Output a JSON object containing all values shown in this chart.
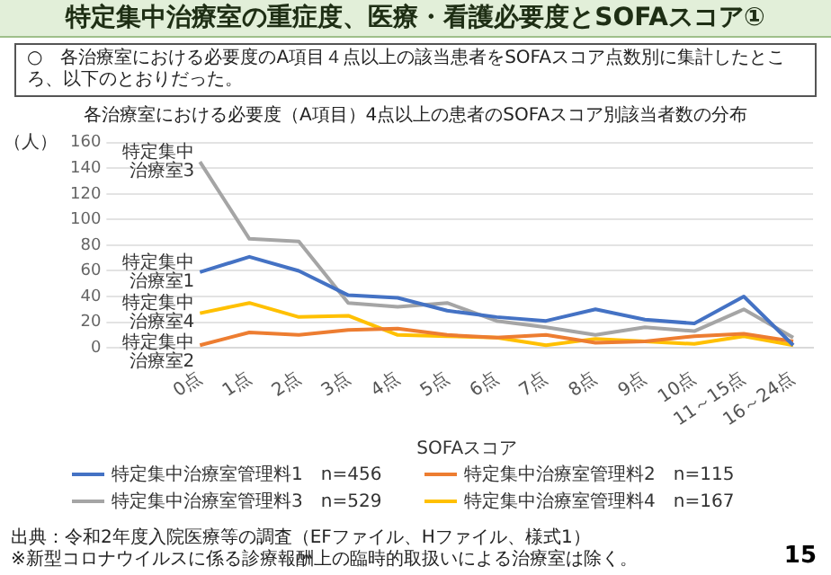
{
  "chart_data": {
    "type": "line",
    "title": "特定集中治療室の重症度、医療・看護必要度とSOFAスコア①",
    "subtitle": "各治療室における必要度（A項目）4点以上の患者のSOFAスコア別該当者数の分布",
    "xlabel": "SOFAスコア",
    "ylabel": "（人）",
    "categories": [
      "0点",
      "1点",
      "2点",
      "3点",
      "4点",
      "5点",
      "6点",
      "7点",
      "8点",
      "9点",
      "10点",
      "11～15点",
      "16～24点"
    ],
    "series": [
      {
        "name": "特定集中治療室管理料1",
        "color": "#4472c4",
        "values": [
          59,
          71,
          60,
          41,
          39,
          29,
          24,
          21,
          30,
          22,
          19,
          40,
          2
        ]
      },
      {
        "name": "特定集中治療室管理料2",
        "color": "#ed7d31",
        "values": [
          2,
          12,
          10,
          14,
          15,
          10,
          8,
          10,
          4,
          5,
          9,
          11,
          5
        ]
      },
      {
        "name": "特定集中治療室管理料3",
        "color": "#a5a5a5",
        "values": [
          145,
          85,
          83,
          35,
          32,
          35,
          21,
          16,
          10,
          16,
          13,
          30,
          8
        ]
      },
      {
        "name": "特定集中治療室管理料4",
        "color": "#ffc000",
        "values": [
          27,
          35,
          24,
          25,
          10,
          9,
          8,
          2,
          7,
          5,
          3,
          9,
          2
        ]
      }
    ],
    "ylim": [
      0,
      160
    ],
    "yticks": [
      0,
      20,
      40,
      60,
      80,
      100,
      120,
      140,
      160
    ],
    "grid": "y",
    "legend": "bottom",
    "marker": "none",
    "line_style": "solid",
    "annotations": [
      "○　各治療室における必要度のA項目４点以上の該当患者をSOFAスコア点数別に集計したところ、以下のとおりだった。",
      {
        "text": "特定集中治療室1",
        "x": "0点",
        "y": 59
      },
      {
        "text": "特定集中治療室2",
        "x": "0点",
        "y": 2
      },
      {
        "text": "特定集中治療室3",
        "x": "0点",
        "y": 145
      },
      {
        "text": "特定集中治療室4",
        "x": "0点",
        "y": 27
      },
      "n=456",
      "n=115",
      "n=529",
      "n=167",
      "出典：令和2年度入院医療等の調査（EFファイル、Hファイル、様式1）",
      "※新型コロナウイルスに係る診療報酬上の臨時的取扱いによる治療室は除く。",
      "15"
    ]
  }
}
